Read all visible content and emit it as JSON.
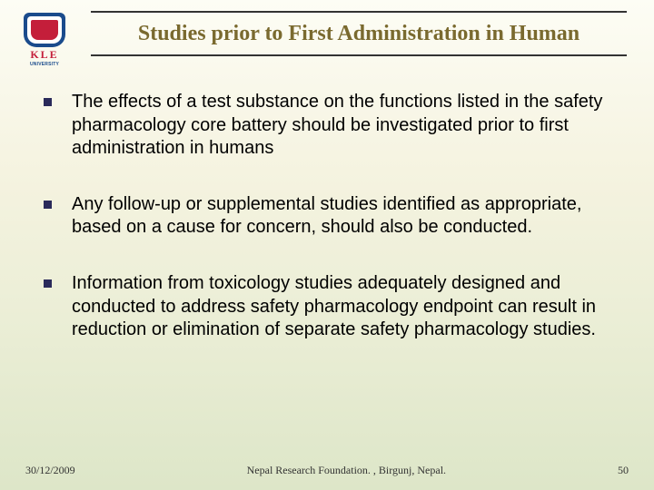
{
  "logo": {
    "brand": "KLE",
    "subtext": "UNIVERSITY",
    "shield_outer": "#1a4b8c",
    "shield_inner": "#c41e3a",
    "brand_color": "#c41e3a"
  },
  "title": {
    "text": "Studies prior to First Administration in Human",
    "color": "#7a6a2f",
    "fontsize": 24
  },
  "bullets": [
    "The effects of a test substance on the functions listed in the safety pharmacology core battery should be investigated prior to first administration in humans",
    "Any follow-up or supplemental studies identified as appropriate, based on a cause for concern, should also be conducted.",
    "Information from toxicology studies adequately designed and conducted to address safety pharmacology endpoint can result in reduction or elimination of separate safety pharmacology studies."
  ],
  "bullet_style": {
    "marker_color": "#2a2a5a",
    "text_fontsize": 20,
    "text_color": "#000000"
  },
  "footer": {
    "date": "30/12/2009",
    "center": "Nepal Research Foundation. , Birgunj, Nepal.",
    "page": "50"
  },
  "background_gradient": [
    "#fdfdf5",
    "#f5f3e0",
    "#ebeed6",
    "#dde6c8"
  ]
}
